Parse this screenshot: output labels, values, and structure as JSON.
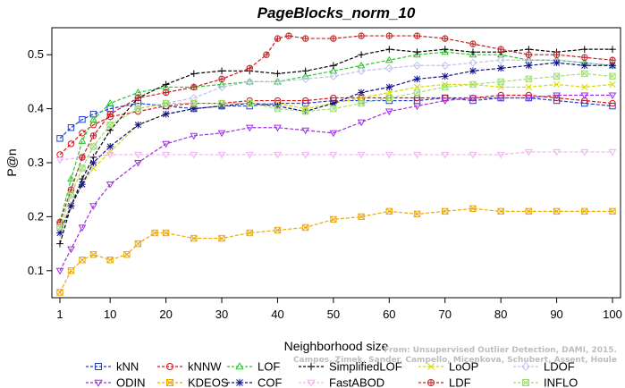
{
  "chart_data": {
    "type": "line",
    "title": "PageBlocks_norm_10",
    "xlabel": "Neighborhood size",
    "ylabel": "P@n",
    "xlim": [
      1,
      100
    ],
    "ylim": [
      0.05,
      0.55
    ],
    "xticks": [
      1,
      10,
      20,
      30,
      40,
      50,
      60,
      70,
      80,
      90,
      100
    ],
    "yticks": [
      0.1,
      0.2,
      0.3,
      0.4,
      0.5
    ],
    "legend_position": "bottom",
    "watermark": "From: Unsupervised Outlier Detection, DAMI, 2015.\nCampos, Zimek, Sander, Campello, Micenkova, Schubert, Assent, Houle",
    "series": [
      {
        "name": "kNN",
        "color": "#1f3fd0",
        "marker": "square",
        "x": [
          1,
          3,
          5,
          7,
          10,
          15,
          20,
          25,
          30,
          35,
          40,
          45,
          50,
          55,
          60,
          65,
          70,
          75,
          80,
          85,
          90,
          95,
          100
        ],
        "y": [
          0.345,
          0.365,
          0.38,
          0.39,
          0.4,
          0.41,
          0.405,
          0.4,
          0.405,
          0.405,
          0.41,
          0.41,
          0.415,
          0.415,
          0.415,
          0.415,
          0.42,
          0.415,
          0.42,
          0.42,
          0.415,
          0.41,
          0.405
        ]
      },
      {
        "name": "kNNW",
        "color": "#e01010",
        "marker": "circle",
        "x": [
          1,
          3,
          5,
          7,
          10,
          15,
          20,
          25,
          30,
          35,
          40,
          45,
          50,
          55,
          60,
          65,
          70,
          75,
          80,
          85,
          90,
          95,
          100
        ],
        "y": [
          0.315,
          0.335,
          0.355,
          0.37,
          0.385,
          0.395,
          0.405,
          0.41,
          0.41,
          0.415,
          0.415,
          0.415,
          0.42,
          0.42,
          0.42,
          0.42,
          0.42,
          0.42,
          0.425,
          0.425,
          0.42,
          0.415,
          0.41
        ]
      },
      {
        "name": "LOF",
        "color": "#28c828",
        "marker": "triangle-up",
        "x": [
          1,
          3,
          5,
          7,
          10,
          15,
          20,
          25,
          30,
          35,
          40,
          45,
          50,
          55,
          60,
          65,
          70,
          75,
          80,
          85,
          90,
          95,
          100
        ],
        "y": [
          0.19,
          0.27,
          0.34,
          0.38,
          0.41,
          0.43,
          0.44,
          0.44,
          0.445,
          0.45,
          0.45,
          0.46,
          0.47,
          0.48,
          0.49,
          0.5,
          0.505,
          0.5,
          0.5,
          0.49,
          0.49,
          0.485,
          0.48
        ]
      },
      {
        "name": "SimplifiedLOF",
        "color": "#000000",
        "marker": "plus",
        "x": [
          1,
          3,
          5,
          7,
          10,
          15,
          20,
          25,
          30,
          35,
          40,
          45,
          50,
          55,
          60,
          65,
          70,
          75,
          80,
          85,
          90,
          95,
          100
        ],
        "y": [
          0.15,
          0.22,
          0.27,
          0.31,
          0.36,
          0.42,
          0.445,
          0.465,
          0.47,
          0.47,
          0.465,
          0.47,
          0.48,
          0.5,
          0.51,
          0.505,
          0.51,
          0.505,
          0.505,
          0.51,
          0.505,
          0.51,
          0.51
        ]
      },
      {
        "name": "LoOP",
        "color": "#d8d800",
        "marker": "x",
        "x": [
          1,
          3,
          5,
          7,
          10,
          15,
          20,
          25,
          30,
          35,
          40,
          45,
          50,
          55,
          60,
          65,
          70,
          75,
          80,
          85,
          90,
          95,
          100
        ],
        "y": [
          0.18,
          0.22,
          0.26,
          0.29,
          0.32,
          0.37,
          0.39,
          0.4,
          0.405,
          0.41,
          0.41,
          0.4,
          0.41,
          0.42,
          0.43,
          0.44,
          0.445,
          0.445,
          0.44,
          0.44,
          0.445,
          0.44,
          0.445
        ]
      },
      {
        "name": "LDOF",
        "color": "#c0c0f0",
        "marker": "diamond",
        "x": [
          1,
          3,
          5,
          7,
          10,
          15,
          20,
          25,
          30,
          35,
          40,
          45,
          50,
          55,
          60,
          65,
          70,
          75,
          80,
          85,
          90,
          95,
          100
        ],
        "y": [
          0.18,
          0.24,
          0.29,
          0.33,
          0.37,
          0.4,
          0.41,
          0.42,
          0.44,
          0.45,
          0.45,
          0.455,
          0.46,
          0.47,
          0.475,
          0.48,
          0.48,
          0.485,
          0.49,
          0.49,
          0.49,
          0.485,
          0.48
        ]
      },
      {
        "name": "ODIN",
        "color": "#9b30e0",
        "marker": "triangle-down",
        "x": [
          1,
          3,
          5,
          7,
          10,
          15,
          20,
          25,
          30,
          35,
          40,
          45,
          50,
          55,
          60,
          65,
          70,
          75,
          80,
          85,
          90,
          95,
          100
        ],
        "y": [
          0.1,
          0.14,
          0.18,
          0.22,
          0.26,
          0.3,
          0.335,
          0.35,
          0.355,
          0.365,
          0.365,
          0.36,
          0.355,
          0.375,
          0.395,
          0.405,
          0.415,
          0.42,
          0.42,
          0.42,
          0.425,
          0.425,
          0.425
        ]
      },
      {
        "name": "KDEOS",
        "color": "#f0a800",
        "marker": "boxed-x",
        "x": [
          1,
          3,
          5,
          7,
          10,
          13,
          15,
          18,
          20,
          25,
          30,
          35,
          40,
          45,
          50,
          55,
          60,
          65,
          70,
          75,
          80,
          85,
          90,
          95,
          100
        ],
        "y": [
          0.06,
          0.1,
          0.12,
          0.13,
          0.12,
          0.13,
          0.15,
          0.17,
          0.17,
          0.16,
          0.16,
          0.17,
          0.175,
          0.18,
          0.195,
          0.2,
          0.21,
          0.205,
          0.21,
          0.215,
          0.21,
          0.21,
          0.21,
          0.21,
          0.21
        ]
      },
      {
        "name": "COF",
        "color": "#10108a",
        "marker": "asterisk",
        "x": [
          1,
          3,
          5,
          7,
          10,
          15,
          20,
          25,
          30,
          35,
          40,
          45,
          50,
          55,
          60,
          65,
          70,
          75,
          80,
          85,
          90,
          95,
          100
        ],
        "y": [
          0.17,
          0.22,
          0.26,
          0.3,
          0.33,
          0.37,
          0.39,
          0.4,
          0.405,
          0.41,
          0.405,
          0.395,
          0.41,
          0.43,
          0.44,
          0.455,
          0.46,
          0.47,
          0.475,
          0.48,
          0.485,
          0.48,
          0.48
        ]
      },
      {
        "name": "FastABOD",
        "color": "#f0b0f0",
        "marker": "triangle-down",
        "x": [
          1,
          5,
          10,
          15,
          20,
          25,
          30,
          35,
          40,
          45,
          50,
          55,
          60,
          65,
          70,
          75,
          80,
          85,
          90,
          95,
          100
        ],
        "y": [
          0.305,
          0.31,
          0.315,
          0.315,
          0.315,
          0.315,
          0.315,
          0.315,
          0.315,
          0.315,
          0.315,
          0.315,
          0.315,
          0.315,
          0.315,
          0.315,
          0.315,
          0.32,
          0.32,
          0.32,
          0.32
        ]
      },
      {
        "name": "LDF",
        "color": "#c02020",
        "marker": "circle-plus",
        "x": [
          1,
          3,
          5,
          7,
          10,
          15,
          20,
          25,
          30,
          35,
          38,
          40,
          42,
          45,
          50,
          55,
          60,
          65,
          70,
          75,
          80,
          85,
          90,
          95,
          100
        ],
        "y": [
          0.19,
          0.25,
          0.31,
          0.35,
          0.39,
          0.42,
          0.43,
          0.44,
          0.455,
          0.475,
          0.5,
          0.53,
          0.535,
          0.53,
          0.53,
          0.535,
          0.535,
          0.535,
          0.53,
          0.52,
          0.51,
          0.5,
          0.5,
          0.495,
          0.49
        ]
      },
      {
        "name": "INFLO",
        "color": "#a0e070",
        "marker": "boxed-x",
        "x": [
          1,
          3,
          5,
          7,
          10,
          15,
          20,
          25,
          30,
          35,
          40,
          45,
          50,
          55,
          60,
          65,
          70,
          75,
          80,
          85,
          90,
          95,
          100
        ],
        "y": [
          0.18,
          0.24,
          0.29,
          0.33,
          0.37,
          0.4,
          0.41,
          0.41,
          0.41,
          0.41,
          0.4,
          0.395,
          0.4,
          0.41,
          0.42,
          0.43,
          0.44,
          0.445,
          0.45,
          0.455,
          0.46,
          0.465,
          0.46
        ]
      }
    ]
  }
}
